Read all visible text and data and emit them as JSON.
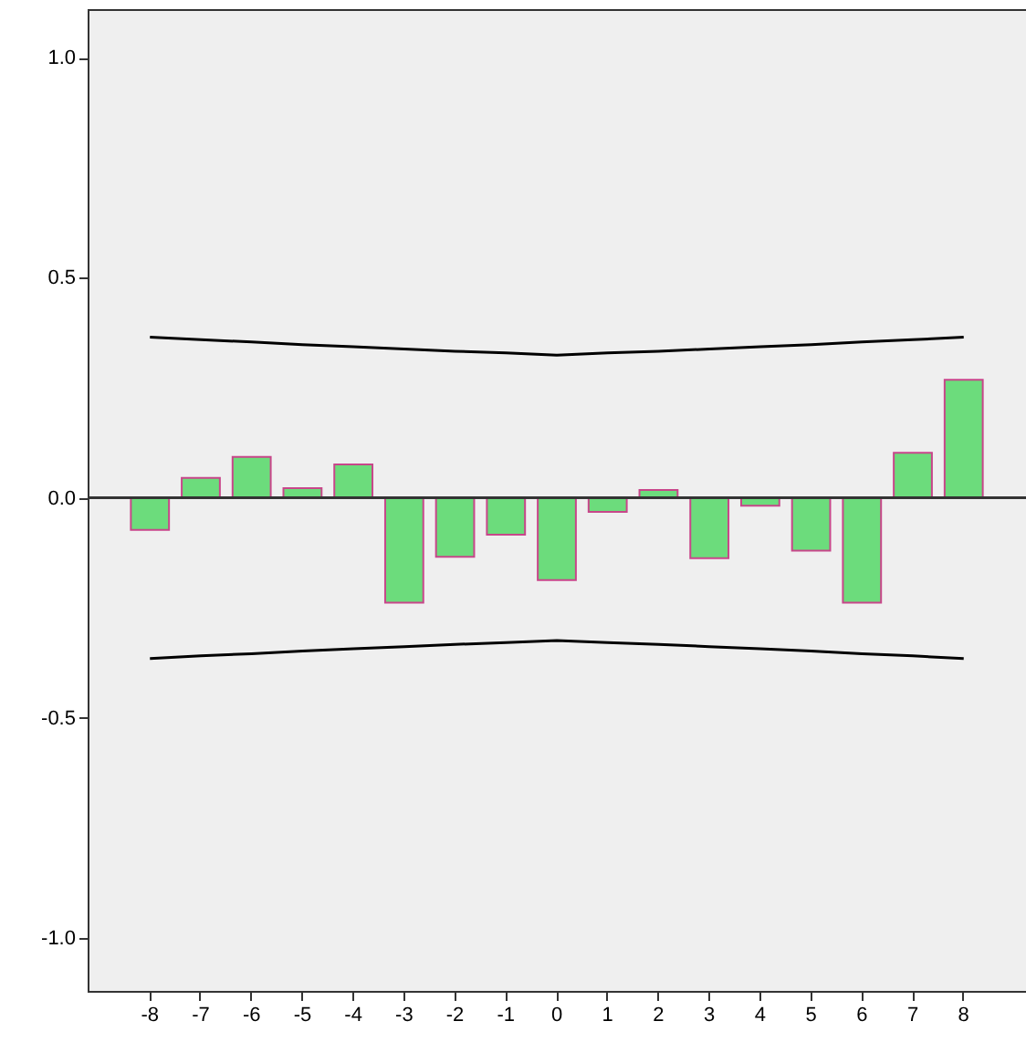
{
  "chart_data": {
    "type": "bar",
    "categories": [
      "-8",
      "-7",
      "-6",
      "-5",
      "-4",
      "-3",
      "-2",
      "-1",
      "0",
      "1",
      "2",
      "3",
      "4",
      "5",
      "6",
      "7",
      "8"
    ],
    "series": [
      {
        "color": "#6cdc7c",
        "values": [
          -0.073,
          0.045,
          0.093,
          0.022,
          0.076,
          -0.238,
          -0.134,
          -0.084,
          -0.187,
          -0.032,
          0.018,
          -0.137,
          -0.018,
          -0.12,
          -0.238,
          0.102,
          0.268
        ]
      },
      {
        "type": "line",
        "color": "#000000",
        "values": [
          0.365,
          0.359,
          0.354,
          0.348,
          0.343,
          0.338,
          0.333,
          0.329,
          0.324,
          0.329,
          0.333,
          0.338,
          0.343,
          0.348,
          0.354,
          0.359,
          0.365
        ]
      },
      {
        "type": "line",
        "color": "#000000",
        "values": [
          -0.365,
          -0.359,
          -0.354,
          -0.348,
          -0.343,
          -0.338,
          -0.333,
          -0.329,
          -0.324,
          -0.329,
          -0.333,
          -0.338,
          -0.343,
          -0.348,
          -0.354,
          -0.359,
          -0.365
        ]
      }
    ],
    "ylim": [
      -1.12,
      1.11
    ],
    "yticks": [
      {
        "value": -1,
        "label": "-1.0"
      },
      -0.5,
      {
        "value": 0,
        "label": "0.0"
      },
      0.5,
      {
        "value": 1,
        "label": "1.0"
      }
    ],
    "ref_lines": [
      {
        "axis": "y",
        "value": 0,
        "color": "#333333"
      }
    ],
    "grid": false
  }
}
